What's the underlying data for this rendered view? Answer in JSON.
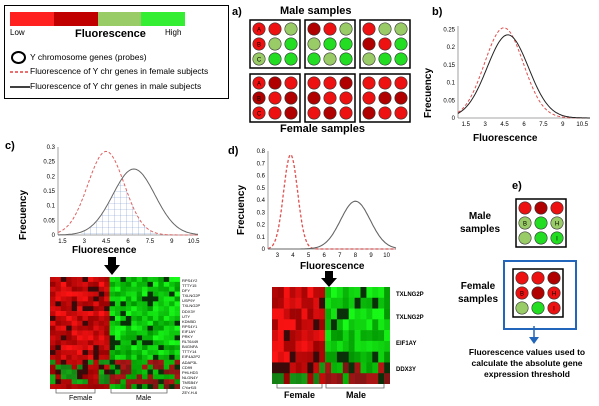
{
  "legend": {
    "low_label": "Low",
    "high_label": "High",
    "scale_title": "Fluorescence",
    "items": [
      "Y chromosome genes (probes)",
      "Fluorescence of Y chr genes in female subjects",
      "Fluorescence of Y chr genes in male subjects"
    ],
    "colors": [
      "#ff0000",
      "#c00000",
      "#99cc66",
      "#33ee33"
    ]
  },
  "panel_a": {
    "letter": "a)",
    "male_title": "Male samples",
    "female_title": "Female samples",
    "row_letters": [
      "A",
      "B",
      "C"
    ]
  },
  "panel_b": {
    "letter": "b)",
    "ylabel": "Frecuency",
    "xlabel": "Fluorescence",
    "yticks": [
      "0.25",
      "0.2",
      "0.15",
      "0.1",
      "0.05",
      "0"
    ],
    "xticks": [
      "1.5",
      "3",
      "4.5",
      "6",
      "7.5",
      "9",
      "10.5"
    ]
  },
  "panel_c": {
    "letter": "c)",
    "ylabel": "Frecuency",
    "xlabel": "Fluorescence",
    "yticks": [
      "0.3",
      "0.25",
      "0.2",
      "0.15",
      "0.1",
      "0.05",
      "0"
    ],
    "xticks": [
      "1.5",
      "3",
      "4.5",
      "6",
      "7.5",
      "9",
      "10.5"
    ],
    "heatmap_labels": [
      "Female",
      "Male"
    ],
    "genes": [
      "RPS4Y2",
      "TTTY15",
      "DFY",
      "TXLNG2P",
      "USP9Y",
      "TXLNG2P",
      "DDX3Y",
      "UTY",
      "KDM5D",
      "RPS4Y1",
      "EIF1AY",
      "PRKY",
      "RLT6449",
      "B4GNFA",
      "TTTY14",
      "EIF4A2P2",
      "ADAP3L",
      "CD99",
      "PHLHD3",
      "NLGN4Y",
      "TMSB4Y",
      "CYorf15",
      "ZEY-H-6"
    ]
  },
  "panel_d": {
    "letter": "d)",
    "ylabel": "Frecuency",
    "xlabel": "Fluorescence",
    "yticks": [
      "0.8",
      "0.7",
      "0.6",
      "0.5",
      "0.4",
      "0.3",
      "0.2",
      "0.1",
      "0"
    ],
    "xticks": [
      "3",
      "4",
      "5",
      "6",
      "7",
      "8",
      "9",
      "10"
    ],
    "heatmap_labels": [
      "Female",
      "Male"
    ],
    "genes": [
      "TXLNG2P",
      "TXLNG2P",
      "EIF1AY",
      "DDX3Y"
    ]
  },
  "panel_e": {
    "letter": "e)",
    "male_label": "Male samples",
    "female_label": "Female samples",
    "male_letters": [
      "B",
      "H",
      "I"
    ],
    "caption": "Fluorescence values used to calculate the absolute gene expression threshold"
  }
}
